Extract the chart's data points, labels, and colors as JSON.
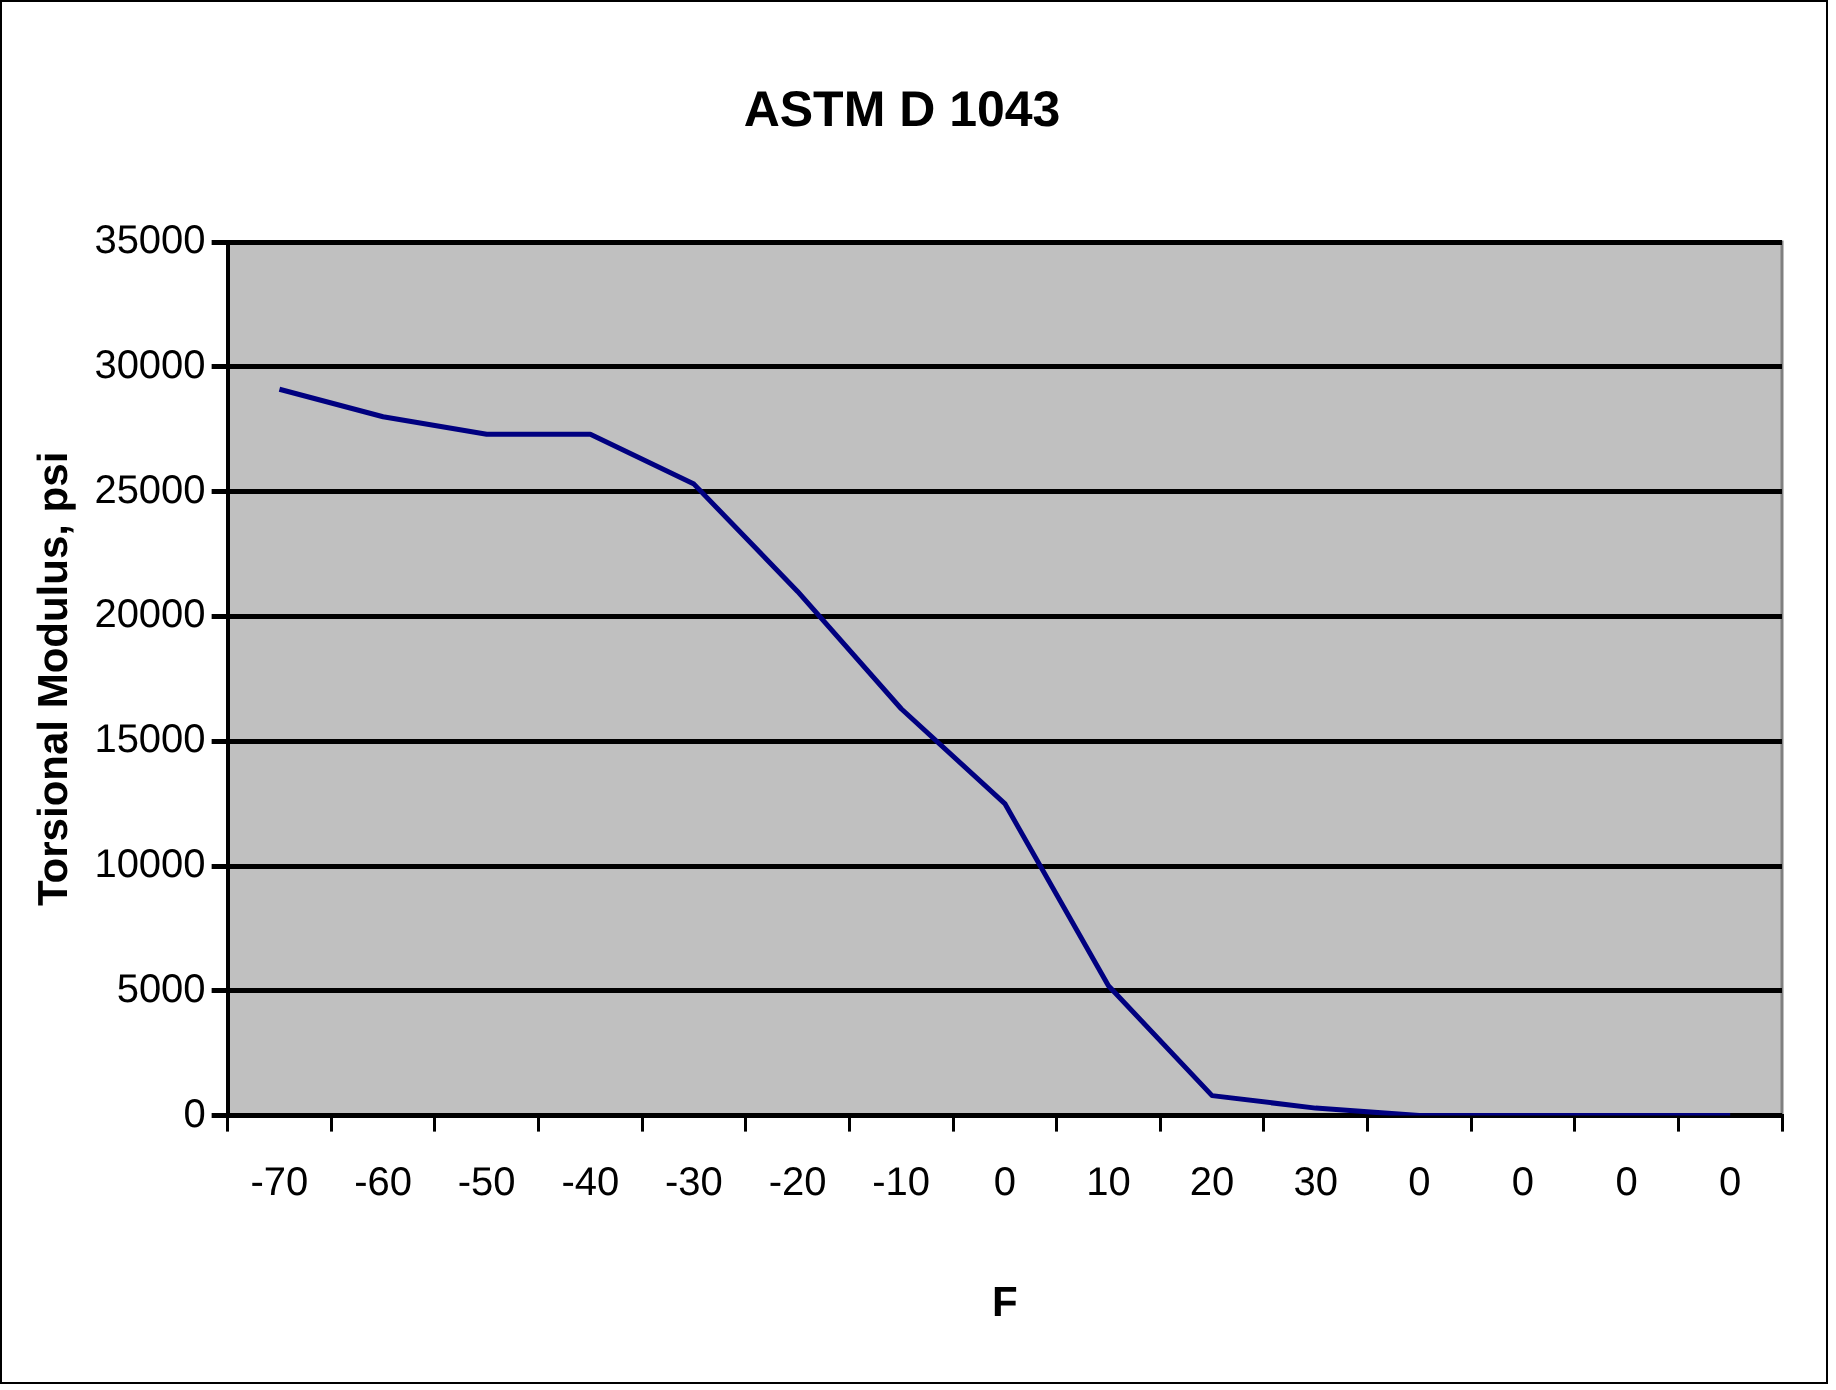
{
  "chart_data": {
    "type": "line",
    "title": "ASTM D 1043",
    "xlabel": "F",
    "ylabel": "Torsional Modulus, psi",
    "categories": [
      "-70",
      "-60",
      "-50",
      "-40",
      "-30",
      "-20",
      "-10",
      "0",
      "10",
      "20",
      "30",
      "0",
      "0",
      "0",
      "0"
    ],
    "series": [
      {
        "color": "#000080",
        "values": [
          29100,
          28000,
          27300,
          27300,
          25300,
          21000,
          16300,
          12500,
          5200,
          800,
          300,
          0,
          0,
          0,
          0
        ]
      }
    ],
    "ylim": [
      0,
      35000
    ],
    "yticks": [
      0,
      5000,
      10000,
      15000,
      20000,
      25000,
      30000,
      35000
    ],
    "grid": "y",
    "legend": false,
    "marker": "none",
    "line_style": "solid"
  }
}
